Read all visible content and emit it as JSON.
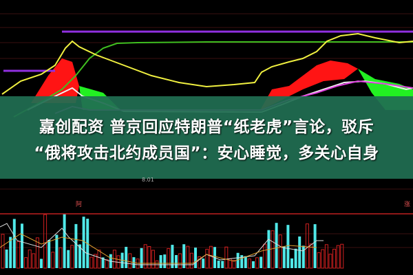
{
  "headline": {
    "line1": "嘉创配资 普京回应特朗普“纸老虎”言论，驳斥",
    "line2": "“俄将攻击北约成员国”：安心睡觉，多关心自身"
  },
  "chart_labels": {
    "low_price": "8.01",
    "left_marker": "阿",
    "right_marker": "涨"
  },
  "colors": {
    "background": "#000000",
    "band": "#206e52",
    "up": "#e02020",
    "down": "#50e8e8",
    "ma_yellow": "#f0f040",
    "ma_green": "#40c020",
    "ma_purple": "#9030e0",
    "fill_red": "#ff1010",
    "fill_green": "#20f020"
  }
}
